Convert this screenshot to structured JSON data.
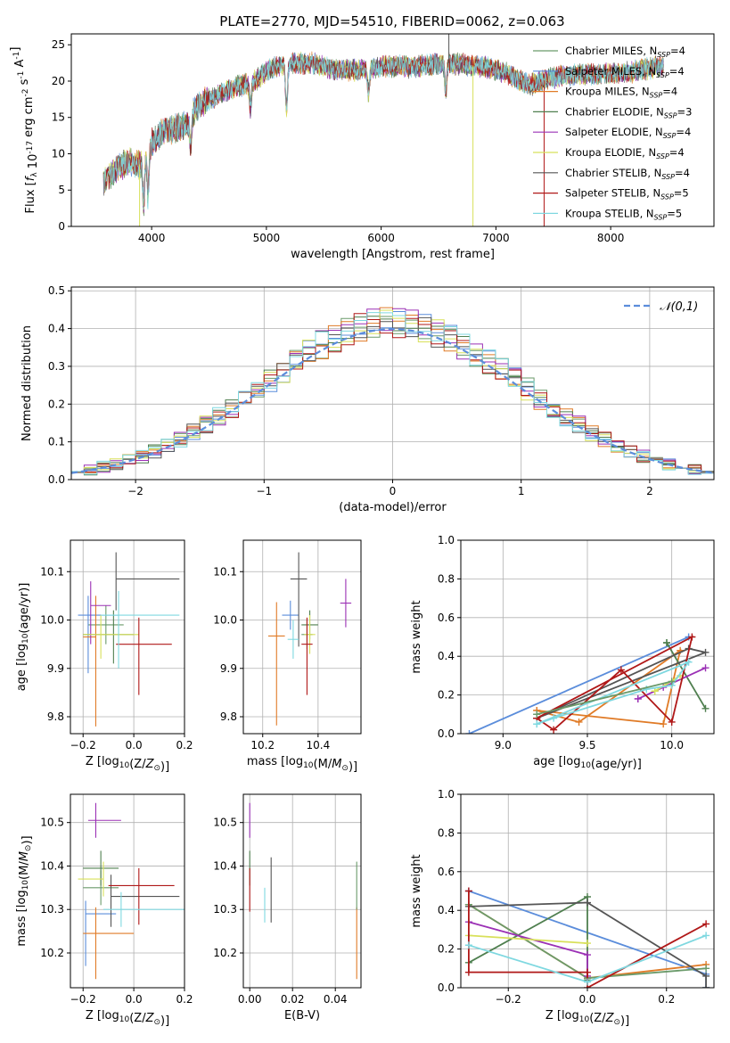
{
  "figure_title": "PLATE=2770, MJD=54510, FIBERID=0062, z=0.063",
  "colors": {
    "Chabrier MILES": "#6a9a6a",
    "Salpeter MILES": "#5b8ddb",
    "Kroupa MILES": "#e07b27",
    "Chabrier ELODIE": "#4f7f4f",
    "Salpeter ELODIE": "#9b30b5",
    "Kroupa ELODIE": "#d8e05a",
    "Chabrier STELIB": "#555555",
    "Salpeter STELIB": "#b01818",
    "Kroupa STELIB": "#7fd8e0"
  },
  "chart_data": [
    {
      "id": "spectrum",
      "type": "line",
      "xlabel": "wavelength [Angstrom, rest frame]",
      "ylabel": "Flux [f_λ 10^-17 erg cm^-2 s^-1 A^-1]",
      "xlim": [
        3300,
        8900
      ],
      "ylim": [
        0,
        26.5
      ],
      "xticks": [
        4000,
        5000,
        6000,
        7000,
        8000
      ],
      "yticks": [
        0,
        5,
        10,
        15,
        20,
        25
      ],
      "grid": false,
      "legend_position": "lower-right",
      "legend": [
        {
          "name": "Chabrier MILES",
          "nssp": "4"
        },
        {
          "name": "Salpeter MILES",
          "nssp": "4"
        },
        {
          "name": "Kroupa MILES",
          "nssp": "4"
        },
        {
          "name": "Chabrier ELODIE",
          "nssp": "3"
        },
        {
          "name": "Salpeter ELODIE",
          "nssp": "4"
        },
        {
          "name": "Kroupa ELODIE",
          "nssp": "4"
        },
        {
          "name": "Chabrier STELIB",
          "nssp": "4"
        },
        {
          "name": "Salpeter STELIB",
          "nssp": "5"
        },
        {
          "name": "Kroupa STELIB",
          "nssp": "5"
        }
      ],
      "continuum": {
        "x": [
          3580,
          3700,
          3800,
          3900,
          4000,
          4100,
          4200,
          4300,
          4400,
          4500,
          4700,
          4900,
          5000,
          5200,
          5400,
          5600,
          5800,
          6000,
          6300,
          6600,
          6900,
          7100,
          7300,
          7500,
          7800,
          8100,
          8400,
          8800
        ],
        "y": [
          6.0,
          8.0,
          9.0,
          8.5,
          11.5,
          13.0,
          13.5,
          14.0,
          16.5,
          17.5,
          19.0,
          20.0,
          21.5,
          22.5,
          22.5,
          21.5,
          21.5,
          22.0,
          22.0,
          22.5,
          22.0,
          21.0,
          19.5,
          20.5,
          21.0,
          21.0,
          22.0,
          22.0
        ]
      },
      "absorption_features": [
        {
          "x": 3930,
          "y": 3.0
        },
        {
          "x": 3968,
          "y": 4.0
        },
        {
          "x": 4340,
          "y": 11.0
        },
        {
          "x": 4861,
          "y": 16.5
        },
        {
          "x": 5175,
          "y": 16.0
        },
        {
          "x": 5890,
          "y": 18.5
        },
        {
          "x": 6563,
          "y": 18.5
        }
      ],
      "outliers": [
        {
          "series": "Kroupa ELODIE",
          "x": 3895,
          "y": 0
        },
        {
          "series": "Kroupa ELODIE",
          "x": 6800,
          "y": 0
        },
        {
          "series": "Salpeter STELIB",
          "x": 7420,
          "y": 0
        },
        {
          "series": "Chabrier STELIB",
          "x": 6590,
          "y": 26.5
        }
      ]
    },
    {
      "id": "residual-distribution",
      "type": "histogram",
      "xlabel": "(data-model)/error",
      "ylabel": "Normed distribution",
      "xlim": [
        -2.5,
        2.5
      ],
      "ylim": [
        0,
        0.51
      ],
      "xticks": [
        -2,
        -1,
        0,
        1,
        2
      ],
      "yticks": [
        0.0,
        0.1,
        0.2,
        0.3,
        0.4,
        0.5
      ],
      "grid": true,
      "bin_width": 0.1,
      "reference_curve": {
        "label": "𝒩(0,1)",
        "mean": 0,
        "sigma": 1,
        "style": "dashed",
        "color": "#5b8ddb"
      },
      "legend_position": "top-right"
    },
    {
      "id": "age-vs-z",
      "type": "errorbar",
      "xlabel": "Z [log10(Z/Z⊙)]",
      "ylabel": "age [log10(age/yr)]",
      "xlim": [
        -0.25,
        0.2
      ],
      "ylim": [
        9.765,
        10.165
      ],
      "xticks": [
        -0.2,
        0.0,
        0.2
      ],
      "yticks": [
        9.8,
        9.9,
        10.0,
        10.1
      ],
      "grid": true,
      "points": [
        {
          "series": "Chabrier MILES",
          "x": -0.11,
          "xerr": [
            0.07,
            0.07
          ],
          "y": 9.99,
          "yerr": [
            0.04,
            0.04
          ]
        },
        {
          "series": "Salpeter MILES",
          "x": -0.18,
          "xerr": [
            0.04,
            0.12
          ],
          "y": 10.01,
          "yerr": [
            0.12,
            0.04
          ]
        },
        {
          "series": "Kroupa MILES",
          "x": -0.15,
          "xerr": [
            0.05,
            0.0
          ],
          "y": 9.965,
          "yerr": [
            0.185,
            0.085
          ]
        },
        {
          "series": "Chabrier ELODIE",
          "x": -0.08,
          "xerr": [
            0.12,
            0.08
          ],
          "y": 9.97,
          "yerr": [
            0.06,
            0.05
          ]
        },
        {
          "series": "Salpeter ELODIE",
          "x": -0.17,
          "xerr": [
            0.0,
            0.08
          ],
          "y": 10.03,
          "yerr": [
            0.08,
            0.05
          ]
        },
        {
          "series": "Kroupa ELODIE",
          "x": -0.13,
          "xerr": [
            0.07,
            0.15
          ],
          "y": 9.97,
          "yerr": [
            0.05,
            0.04
          ]
        },
        {
          "series": "Chabrier STELIB",
          "x": -0.07,
          "xerr": [
            0.0,
            0.25
          ],
          "y": 10.085,
          "yerr": [
            0.065,
            0.055
          ]
        },
        {
          "series": "Salpeter STELIB",
          "x": 0.02,
          "xerr": [
            0.09,
            0.13
          ],
          "y": 9.95,
          "yerr": [
            0.105,
            0.055
          ]
        },
        {
          "series": "Kroupa STELIB",
          "x": -0.06,
          "xerr": [
            0.07,
            0.24
          ],
          "y": 10.01,
          "yerr": [
            0.11,
            0.05
          ]
        }
      ]
    },
    {
      "id": "age-vs-mass",
      "type": "errorbar",
      "xlabel": "mass [log10(M/M⊙)]",
      "ylabel": "",
      "xlim": [
        10.13,
        10.555
      ],
      "ylim": [
        9.765,
        10.165
      ],
      "xticks": [
        10.2,
        10.4
      ],
      "yticks": [
        9.8,
        9.9,
        10.0,
        10.1
      ],
      "grid": true,
      "points": [
        {
          "series": "Chabrier MILES",
          "x": 10.36,
          "xerr": [
            0.02,
            0.02
          ],
          "y": 9.97,
          "yerr": [
            0.03,
            0.03
          ]
        },
        {
          "series": "Salpeter MILES",
          "x": 10.3,
          "xerr": [
            0.03,
            0.03
          ],
          "y": 10.01,
          "yerr": [
            0.03,
            0.03
          ]
        },
        {
          "series": "Kroupa MILES",
          "x": 10.25,
          "xerr": [
            0.03,
            0.03
          ],
          "y": 9.967,
          "yerr": [
            0.185,
            0.07
          ]
        },
        {
          "series": "Chabrier ELODIE",
          "x": 10.37,
          "xerr": [
            0.03,
            0.03
          ],
          "y": 9.99,
          "yerr": [
            0.03,
            0.03
          ]
        },
        {
          "series": "Salpeter ELODIE",
          "x": 10.5,
          "xerr": [
            0.02,
            0.02
          ],
          "y": 10.035,
          "yerr": [
            0.05,
            0.05
          ]
        },
        {
          "series": "Kroupa ELODIE",
          "x": 10.37,
          "xerr": [
            0.02,
            0.02
          ],
          "y": 9.97,
          "yerr": [
            0.04,
            0.04
          ]
        },
        {
          "series": "Chabrier STELIB",
          "x": 10.33,
          "xerr": [
            0.03,
            0.03
          ],
          "y": 10.085,
          "yerr": [
            0.14,
            0.055
          ]
        },
        {
          "series": "Salpeter STELIB",
          "x": 10.36,
          "xerr": [
            0.02,
            0.02
          ],
          "y": 9.95,
          "yerr": [
            0.105,
            0.055
          ]
        },
        {
          "series": "Kroupa STELIB",
          "x": 10.31,
          "xerr": [
            0.02,
            0.02
          ],
          "y": 9.96,
          "yerr": [
            0.04,
            0.04
          ]
        }
      ]
    },
    {
      "id": "weight-vs-age",
      "type": "line",
      "xlabel": "age [log10(age/yr)]",
      "ylabel": "mass weight",
      "xlim": [
        8.75,
        10.25
      ],
      "ylim": [
        0,
        1.0
      ],
      "xticks": [
        9.0,
        9.5,
        10.0
      ],
      "yticks": [
        0.0,
        0.2,
        0.4,
        0.6,
        0.8,
        1.0
      ],
      "grid": true,
      "series": [
        {
          "name": "Salpeter MILES",
          "x": [
            8.8,
            10.1
          ],
          "y": [
            0.0,
            0.5
          ]
        },
        {
          "name": "Kroupa MILES",
          "x": [
            9.2,
            9.95,
            10.05,
            9.45,
            9.2
          ],
          "y": [
            0.12,
            0.05,
            0.43,
            0.06,
            0.12
          ]
        },
        {
          "name": "Chabrier ELODIE",
          "x": [
            9.97,
            10.2,
            9.97
          ],
          "y": [
            0.47,
            0.13,
            0.47
          ]
        },
        {
          "name": "Salpeter ELODIE",
          "x": [
            9.8,
            10.2,
            9.95,
            9.8
          ],
          "y": [
            0.18,
            0.34,
            0.24,
            0.18
          ]
        },
        {
          "name": "Kroupa ELODIE",
          "x": [
            9.9,
            10.05,
            9.9
          ],
          "y": [
            0.22,
            0.3,
            0.22
          ]
        },
        {
          "name": "Chabrier STELIB",
          "x": [
            9.2,
            10.1,
            10.2,
            9.2
          ],
          "y": [
            0.08,
            0.44,
            0.42,
            0.08
          ]
        },
        {
          "name": "Salpeter STELIB",
          "x": [
            9.2,
            9.3,
            9.7,
            10.0,
            10.12,
            9.2
          ],
          "y": [
            0.08,
            0.02,
            0.33,
            0.06,
            0.5,
            0.08
          ]
        },
        {
          "name": "Kroupa STELIB",
          "x": [
            9.2,
            9.3,
            9.85,
            10.0,
            10.1,
            9.2
          ],
          "y": [
            0.05,
            0.08,
            0.23,
            0.25,
            0.37,
            0.05
          ]
        },
        {
          "name": "Chabrier MILES",
          "x": [
            9.2,
            10.0,
            9.2
          ],
          "y": [
            0.1,
            0.27,
            0.1
          ]
        }
      ]
    },
    {
      "id": "mass-vs-z",
      "type": "errorbar",
      "xlabel": "Z [log10(Z/Z⊙)]",
      "ylabel": "mass [log10(M/M⊙)]",
      "xlim": [
        -0.25,
        0.2
      ],
      "ylim": [
        10.12,
        10.565
      ],
      "xticks": [
        -0.2,
        0.0,
        0.2
      ],
      "yticks": [
        10.2,
        10.3,
        10.4,
        10.5
      ],
      "grid": true,
      "points": [
        {
          "series": "Chabrier MILES",
          "x": -0.13,
          "xerr": [
            0.07,
            0.07
          ],
          "y": 10.35,
          "yerr": [
            0.04,
            0.04
          ]
        },
        {
          "series": "Salpeter MILES",
          "x": -0.19,
          "xerr": [
            0.0,
            0.12
          ],
          "y": 10.29,
          "yerr": [
            0.12,
            0.03
          ]
        },
        {
          "series": "Kroupa MILES",
          "x": -0.15,
          "xerr": [
            0.05,
            0.15
          ],
          "y": 10.245,
          "yerr": [
            0.105,
            0.06
          ]
        },
        {
          "series": "Chabrier ELODIE",
          "x": -0.13,
          "xerr": [
            0.07,
            0.07
          ],
          "y": 10.395,
          "yerr": [
            0.04,
            0.04
          ]
        },
        {
          "series": "Salpeter ELODIE",
          "x": -0.15,
          "xerr": [
            0.03,
            0.1
          ],
          "y": 10.505,
          "yerr": [
            0.04,
            0.04
          ]
        },
        {
          "series": "Kroupa ELODIE",
          "x": -0.12,
          "xerr": [
            0.1,
            0.0
          ],
          "y": 10.37,
          "yerr": [
            0.04,
            0.04
          ]
        },
        {
          "series": "Chabrier STELIB",
          "x": -0.09,
          "xerr": [
            0.0,
            0.27
          ],
          "y": 10.33,
          "yerr": [
            0.07,
            0.05
          ]
        },
        {
          "series": "Salpeter STELIB",
          "x": 0.02,
          "xerr": [
            0.12,
            0.14
          ],
          "y": 10.355,
          "yerr": [
            0.09,
            0.04
          ]
        },
        {
          "series": "Kroupa STELIB",
          "x": -0.05,
          "xerr": [
            0.07,
            0.27
          ],
          "y": 10.3,
          "yerr": [
            0.04,
            0.04
          ]
        }
      ]
    },
    {
      "id": "mass-vs-ebv",
      "type": "errorbar",
      "xlabel": "E(B-V)",
      "ylabel": "",
      "xlim": [
        -0.003,
        0.052
      ],
      "ylim": [
        10.12,
        10.565
      ],
      "xticks": [
        0.0,
        0.02,
        0.04
      ],
      "yticks": [
        10.2,
        10.3,
        10.4,
        10.5
      ],
      "grid": true,
      "points": [
        {
          "series": "Chabrier ELODIE",
          "x": 0.0,
          "y": 10.395,
          "yerr": [
            0.04,
            0.04
          ]
        },
        {
          "series": "Salpeter ELODIE",
          "x": 0.0,
          "y": 10.505,
          "yerr": [
            0.04,
            0.04
          ]
        },
        {
          "series": "Salpeter STELIB",
          "x": 0.0,
          "y": 10.355,
          "yerr": [
            0.06,
            0.04
          ]
        },
        {
          "series": "Kroupa STELIB",
          "x": 0.007,
          "y": 10.3,
          "yerr": [
            0.03,
            0.05
          ]
        },
        {
          "series": "Chabrier STELIB",
          "x": 0.01,
          "y": 10.33,
          "yerr": [
            0.06,
            0.09
          ]
        },
        {
          "series": "Kroupa MILES",
          "x": 0.05,
          "y": 10.245,
          "yerr": [
            0.105,
            0.06
          ]
        },
        {
          "series": "Chabrier MILES",
          "x": 0.05,
          "y": 10.35,
          "yerr": [
            0.05,
            0.06
          ]
        }
      ]
    },
    {
      "id": "weight-vs-z",
      "type": "line",
      "xlabel": "Z [log10(Z/Z⊙)]",
      "ylabel": "mass weight",
      "xlim": [
        -0.32,
        0.32
      ],
      "ylim": [
        0,
        1.0
      ],
      "xticks": [
        -0.2,
        0.0,
        0.2
      ],
      "yticks": [
        0.0,
        0.2,
        0.4,
        0.6,
        0.8,
        1.0
      ],
      "grid": true,
      "series": [
        {
          "name": "Salpeter MILES",
          "x": [
            -0.3,
            0.3,
            0.3
          ],
          "y": [
            0.5,
            0.07,
            0.0
          ]
        },
        {
          "name": "Kroupa MILES",
          "x": [
            -0.3,
            0.0,
            0.3
          ],
          "y": [
            0.43,
            0.05,
            0.12
          ]
        },
        {
          "name": "Chabrier MILES",
          "x": [
            -0.3,
            0.0,
            0.3
          ],
          "y": [
            0.43,
            0.05,
            0.1
          ]
        },
        {
          "name": "Chabrier ELODIE",
          "x": [
            -0.3,
            0.0,
            0.0
          ],
          "y": [
            0.13,
            0.47,
            0.04
          ]
        },
        {
          "name": "Salpeter ELODIE",
          "x": [
            -0.3,
            0.0,
            0.0
          ],
          "y": [
            0.34,
            0.17,
            0.06
          ]
        },
        {
          "name": "Kroupa ELODIE",
          "x": [
            -0.3,
            0.0
          ],
          "y": [
            0.27,
            0.23
          ]
        },
        {
          "name": "Chabrier STELIB",
          "x": [
            -0.3,
            0.0,
            0.3,
            0.3
          ],
          "y": [
            0.42,
            0.44,
            0.06,
            0.0
          ]
        },
        {
          "name": "Salpeter STELIB",
          "x": [
            -0.3,
            -0.3,
            0.0,
            0.0,
            0.3
          ],
          "y": [
            0.5,
            0.08,
            0.08,
            0.0,
            0.33
          ]
        },
        {
          "name": "Kroupa STELIB",
          "x": [
            -0.3,
            0.0,
            0.3
          ],
          "y": [
            0.22,
            0.03,
            0.27
          ]
        }
      ]
    }
  ]
}
